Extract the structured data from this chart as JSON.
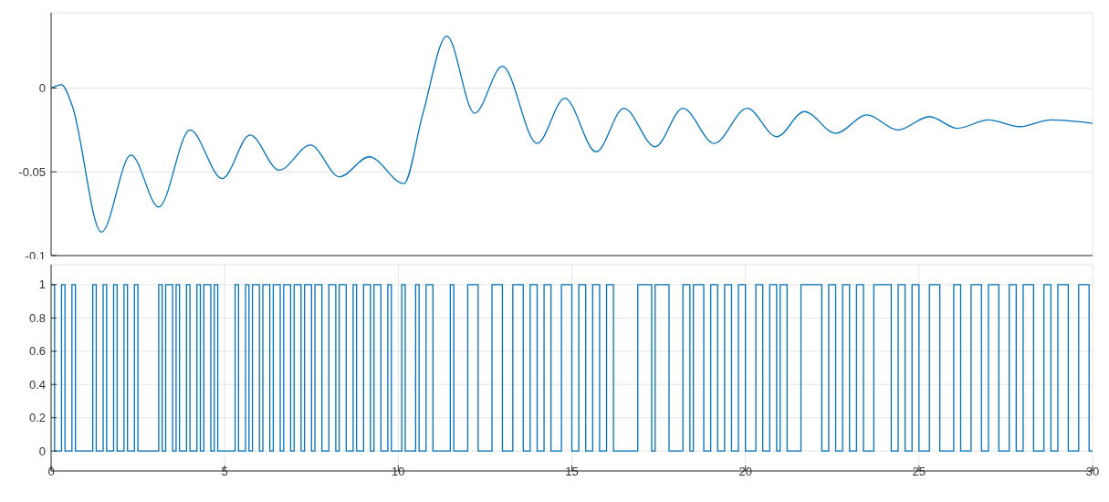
{
  "chart_data": [
    {
      "type": "line",
      "color": "#0072bd",
      "xlim": [
        0,
        30
      ],
      "xticks": [
        0,
        5,
        10,
        15,
        20,
        25,
        30
      ],
      "ylim": [
        -0.1,
        0.045
      ],
      "yticks": [
        -0.1,
        -0.05,
        0
      ],
      "grid": true,
      "tick_labels": "y",
      "x": [
        0,
        0.3,
        0.6,
        1.45,
        2.3,
        3.1,
        4.0,
        4.93,
        5.73,
        6.57,
        7.47,
        8.31,
        9.16,
        10.16,
        10.7,
        11.4,
        12.2,
        13.0,
        14.0,
        14.8,
        15.7,
        16.5,
        17.4,
        18.2,
        19.1,
        20.05,
        20.9,
        21.7,
        22.6,
        23.5,
        24.4,
        25.3,
        26.1,
        27.0,
        27.9,
        28.8,
        30
      ],
      "values": [
        0,
        0.002,
        -0.01,
        -0.086,
        -0.04,
        -0.071,
        -0.025,
        -0.054,
        -0.028,
        -0.049,
        -0.034,
        -0.053,
        -0.041,
        -0.057,
        -0.016,
        0.031,
        -0.015,
        0.013,
        -0.033,
        -0.006,
        -0.038,
        -0.012,
        -0.035,
        -0.012,
        -0.033,
        -0.012,
        -0.029,
        -0.014,
        -0.027,
        -0.016,
        -0.025,
        -0.017,
        -0.024,
        -0.019,
        -0.023,
        -0.019,
        -0.021
      ]
    },
    {
      "type": "step",
      "color": "#0072bd",
      "xlim": [
        0,
        30
      ],
      "xticks": [
        0,
        5,
        10,
        15,
        20,
        25,
        30
      ],
      "ylim": [
        -0.12,
        1.12
      ],
      "yticks": [
        0,
        0.2,
        0.4,
        0.6,
        0.8,
        1
      ],
      "grid": true,
      "x": [
        0,
        0.1,
        0.3,
        0.4,
        0.6,
        0.7,
        1.2,
        1.3,
        1.5,
        1.6,
        1.8,
        1.9,
        2.1,
        2.2,
        2.4,
        2.5,
        3.1,
        3.2,
        3.3,
        3.5,
        3.6,
        3.7,
        3.9,
        4.0,
        4.2,
        4.3,
        4.4,
        4.6,
        4.7,
        4.8,
        5.3,
        5.4,
        5.6,
        5.7,
        5.8,
        6.0,
        6.1,
        6.3,
        6.4,
        6.6,
        6.7,
        6.9,
        7.0,
        7.2,
        7.3,
        7.5,
        7.6,
        7.8,
        8.0,
        8.2,
        8.3,
        8.5,
        8.7,
        8.8,
        9.0,
        9.2,
        9.3,
        9.5,
        9.7,
        9.8,
        10.1,
        10.2,
        10.5,
        10.6,
        10.8,
        11.0,
        11.5,
        11.6,
        12.0,
        12.3,
        12.7,
        13.0,
        13.3,
        13.6,
        13.8,
        14.0,
        14.2,
        14.4,
        14.7,
        15.0,
        15.2,
        15.4,
        15.6,
        15.8,
        16.0,
        16.2,
        16.9,
        17.3,
        17.4,
        17.8,
        18.2,
        18.4,
        18.5,
        18.8,
        19.0,
        19.2,
        19.4,
        19.6,
        19.8,
        20.0,
        20.3,
        20.5,
        20.7,
        20.9,
        21.0,
        21.2,
        21.6,
        22.2,
        22.4,
        22.6,
        22.8,
        23.0,
        23.2,
        23.4,
        23.7,
        24.2,
        24.4,
        24.6,
        24.8,
        25.0,
        25.3,
        25.6,
        26.0,
        26.2,
        26.5,
        26.8,
        27.0,
        27.3,
        27.6,
        27.8,
        28.0,
        28.3,
        28.6,
        28.8,
        29.0,
        29.3,
        29.6,
        29.9,
        30
      ],
      "values": [
        1,
        0,
        1,
        0,
        1,
        0,
        1,
        0,
        1,
        0,
        1,
        0,
        1,
        0,
        1,
        0,
        1,
        0,
        1,
        0,
        1,
        0,
        1,
        0,
        1,
        0,
        1,
        0,
        1,
        0,
        1,
        0,
        1,
        0,
        1,
        0,
        1,
        0,
        1,
        0,
        1,
        0,
        1,
        0,
        1,
        0,
        1,
        0,
        1,
        0,
        1,
        0,
        1,
        0,
        1,
        0,
        1,
        0,
        1,
        0,
        1,
        0,
        1,
        0,
        1,
        0,
        1,
        0,
        1,
        0,
        1,
        0,
        1,
        0,
        1,
        0,
        1,
        0,
        1,
        0,
        1,
        0,
        1,
        0,
        1,
        0,
        1,
        0,
        1,
        0,
        1,
        0,
        1,
        0,
        1,
        0,
        1,
        0,
        1,
        0,
        1,
        0,
        1,
        0,
        1,
        0,
        1,
        0,
        1,
        0,
        1,
        0,
        1,
        0,
        1,
        0,
        1,
        0,
        1,
        0,
        1,
        0,
        1,
        0,
        1,
        0,
        1,
        0,
        1,
        0,
        1,
        0,
        1,
        0,
        1,
        0,
        1,
        0,
        0
      ]
    }
  ]
}
